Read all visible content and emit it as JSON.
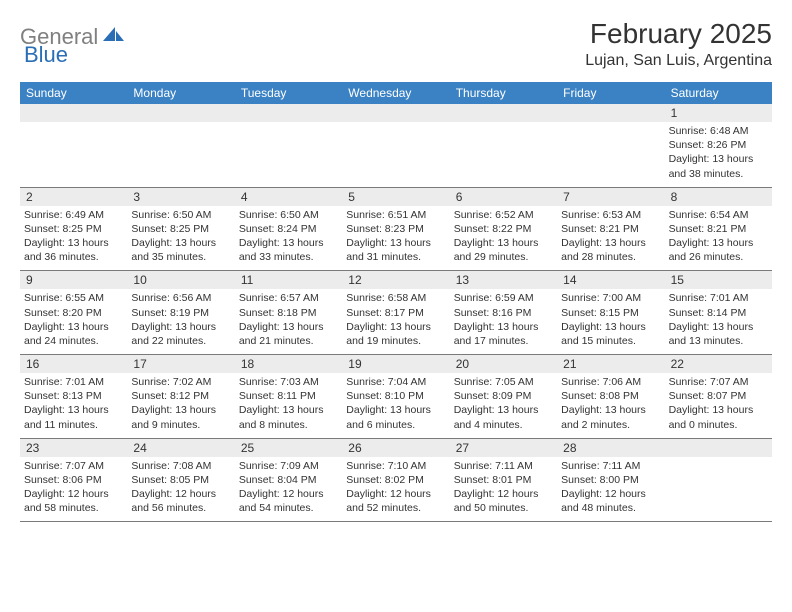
{
  "logo": {
    "gray": "General",
    "blue": "Blue"
  },
  "title": "February 2025",
  "location": "Lujan, San Luis, Argentina",
  "colors": {
    "header_bg": "#3a82c4",
    "header_text": "#ffffff",
    "daynum_bg": "#ececec",
    "text": "#333333",
    "rule": "#7a7a7a",
    "logo_gray": "#808080",
    "logo_blue": "#2a6fb5"
  },
  "day_names": [
    "Sunday",
    "Monday",
    "Tuesday",
    "Wednesday",
    "Thursday",
    "Friday",
    "Saturday"
  ],
  "weeks": [
    [
      {
        "n": "",
        "sr": "",
        "ss": "",
        "dl": ""
      },
      {
        "n": "",
        "sr": "",
        "ss": "",
        "dl": ""
      },
      {
        "n": "",
        "sr": "",
        "ss": "",
        "dl": ""
      },
      {
        "n": "",
        "sr": "",
        "ss": "",
        "dl": ""
      },
      {
        "n": "",
        "sr": "",
        "ss": "",
        "dl": ""
      },
      {
        "n": "",
        "sr": "",
        "ss": "",
        "dl": ""
      },
      {
        "n": "1",
        "sr": "Sunrise: 6:48 AM",
        "ss": "Sunset: 8:26 PM",
        "dl": "Daylight: 13 hours and 38 minutes."
      }
    ],
    [
      {
        "n": "2",
        "sr": "Sunrise: 6:49 AM",
        "ss": "Sunset: 8:25 PM",
        "dl": "Daylight: 13 hours and 36 minutes."
      },
      {
        "n": "3",
        "sr": "Sunrise: 6:50 AM",
        "ss": "Sunset: 8:25 PM",
        "dl": "Daylight: 13 hours and 35 minutes."
      },
      {
        "n": "4",
        "sr": "Sunrise: 6:50 AM",
        "ss": "Sunset: 8:24 PM",
        "dl": "Daylight: 13 hours and 33 minutes."
      },
      {
        "n": "5",
        "sr": "Sunrise: 6:51 AM",
        "ss": "Sunset: 8:23 PM",
        "dl": "Daylight: 13 hours and 31 minutes."
      },
      {
        "n": "6",
        "sr": "Sunrise: 6:52 AM",
        "ss": "Sunset: 8:22 PM",
        "dl": "Daylight: 13 hours and 29 minutes."
      },
      {
        "n": "7",
        "sr": "Sunrise: 6:53 AM",
        "ss": "Sunset: 8:21 PM",
        "dl": "Daylight: 13 hours and 28 minutes."
      },
      {
        "n": "8",
        "sr": "Sunrise: 6:54 AM",
        "ss": "Sunset: 8:21 PM",
        "dl": "Daylight: 13 hours and 26 minutes."
      }
    ],
    [
      {
        "n": "9",
        "sr": "Sunrise: 6:55 AM",
        "ss": "Sunset: 8:20 PM",
        "dl": "Daylight: 13 hours and 24 minutes."
      },
      {
        "n": "10",
        "sr": "Sunrise: 6:56 AM",
        "ss": "Sunset: 8:19 PM",
        "dl": "Daylight: 13 hours and 22 minutes."
      },
      {
        "n": "11",
        "sr": "Sunrise: 6:57 AM",
        "ss": "Sunset: 8:18 PM",
        "dl": "Daylight: 13 hours and 21 minutes."
      },
      {
        "n": "12",
        "sr": "Sunrise: 6:58 AM",
        "ss": "Sunset: 8:17 PM",
        "dl": "Daylight: 13 hours and 19 minutes."
      },
      {
        "n": "13",
        "sr": "Sunrise: 6:59 AM",
        "ss": "Sunset: 8:16 PM",
        "dl": "Daylight: 13 hours and 17 minutes."
      },
      {
        "n": "14",
        "sr": "Sunrise: 7:00 AM",
        "ss": "Sunset: 8:15 PM",
        "dl": "Daylight: 13 hours and 15 minutes."
      },
      {
        "n": "15",
        "sr": "Sunrise: 7:01 AM",
        "ss": "Sunset: 8:14 PM",
        "dl": "Daylight: 13 hours and 13 minutes."
      }
    ],
    [
      {
        "n": "16",
        "sr": "Sunrise: 7:01 AM",
        "ss": "Sunset: 8:13 PM",
        "dl": "Daylight: 13 hours and 11 minutes."
      },
      {
        "n": "17",
        "sr": "Sunrise: 7:02 AM",
        "ss": "Sunset: 8:12 PM",
        "dl": "Daylight: 13 hours and 9 minutes."
      },
      {
        "n": "18",
        "sr": "Sunrise: 7:03 AM",
        "ss": "Sunset: 8:11 PM",
        "dl": "Daylight: 13 hours and 8 minutes."
      },
      {
        "n": "19",
        "sr": "Sunrise: 7:04 AM",
        "ss": "Sunset: 8:10 PM",
        "dl": "Daylight: 13 hours and 6 minutes."
      },
      {
        "n": "20",
        "sr": "Sunrise: 7:05 AM",
        "ss": "Sunset: 8:09 PM",
        "dl": "Daylight: 13 hours and 4 minutes."
      },
      {
        "n": "21",
        "sr": "Sunrise: 7:06 AM",
        "ss": "Sunset: 8:08 PM",
        "dl": "Daylight: 13 hours and 2 minutes."
      },
      {
        "n": "22",
        "sr": "Sunrise: 7:07 AM",
        "ss": "Sunset: 8:07 PM",
        "dl": "Daylight: 13 hours and 0 minutes."
      }
    ],
    [
      {
        "n": "23",
        "sr": "Sunrise: 7:07 AM",
        "ss": "Sunset: 8:06 PM",
        "dl": "Daylight: 12 hours and 58 minutes."
      },
      {
        "n": "24",
        "sr": "Sunrise: 7:08 AM",
        "ss": "Sunset: 8:05 PM",
        "dl": "Daylight: 12 hours and 56 minutes."
      },
      {
        "n": "25",
        "sr": "Sunrise: 7:09 AM",
        "ss": "Sunset: 8:04 PM",
        "dl": "Daylight: 12 hours and 54 minutes."
      },
      {
        "n": "26",
        "sr": "Sunrise: 7:10 AM",
        "ss": "Sunset: 8:02 PM",
        "dl": "Daylight: 12 hours and 52 minutes."
      },
      {
        "n": "27",
        "sr": "Sunrise: 7:11 AM",
        "ss": "Sunset: 8:01 PM",
        "dl": "Daylight: 12 hours and 50 minutes."
      },
      {
        "n": "28",
        "sr": "Sunrise: 7:11 AM",
        "ss": "Sunset: 8:00 PM",
        "dl": "Daylight: 12 hours and 48 minutes."
      },
      {
        "n": "",
        "sr": "",
        "ss": "",
        "dl": ""
      }
    ]
  ]
}
